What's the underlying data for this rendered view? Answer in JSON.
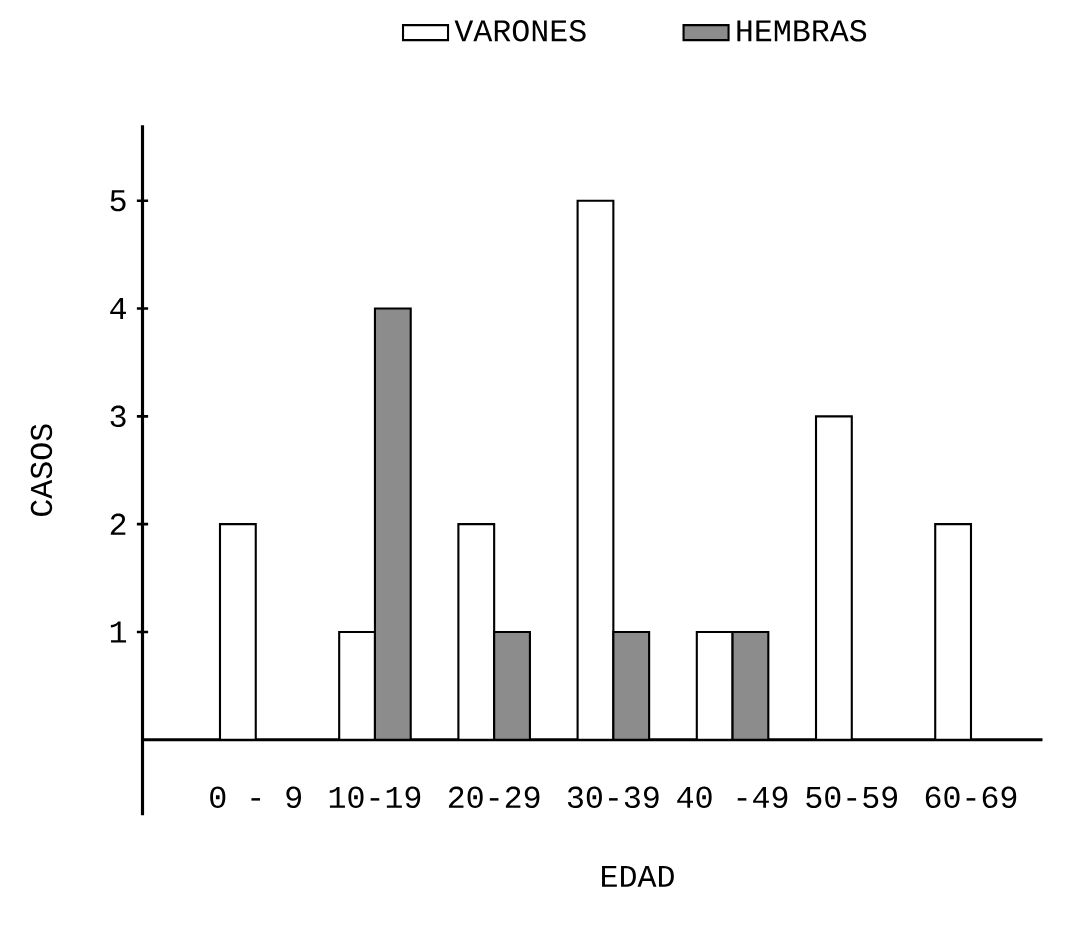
{
  "chart_data": {
    "type": "bar",
    "xlabel": "EDAD",
    "ylabel": "CASOS",
    "categories": [
      "0 - 9",
      "10-19",
      "20-29",
      "30-39",
      "40 -49",
      "50-59",
      "60-69"
    ],
    "series": [
      {
        "name": "VARONES",
        "color": "#ffffff",
        "values": [
          2,
          1,
          2,
          5,
          1,
          3,
          2
        ]
      },
      {
        "name": "HEMBRAS",
        "color": "#8c8c8c",
        "values": [
          null,
          4,
          1,
          1,
          1,
          null,
          null
        ]
      }
    ],
    "ylim": [
      -0.7,
      5.7
    ],
    "yticks": [
      1,
      2,
      3,
      4,
      5
    ],
    "legend": "top",
    "grid": false
  }
}
